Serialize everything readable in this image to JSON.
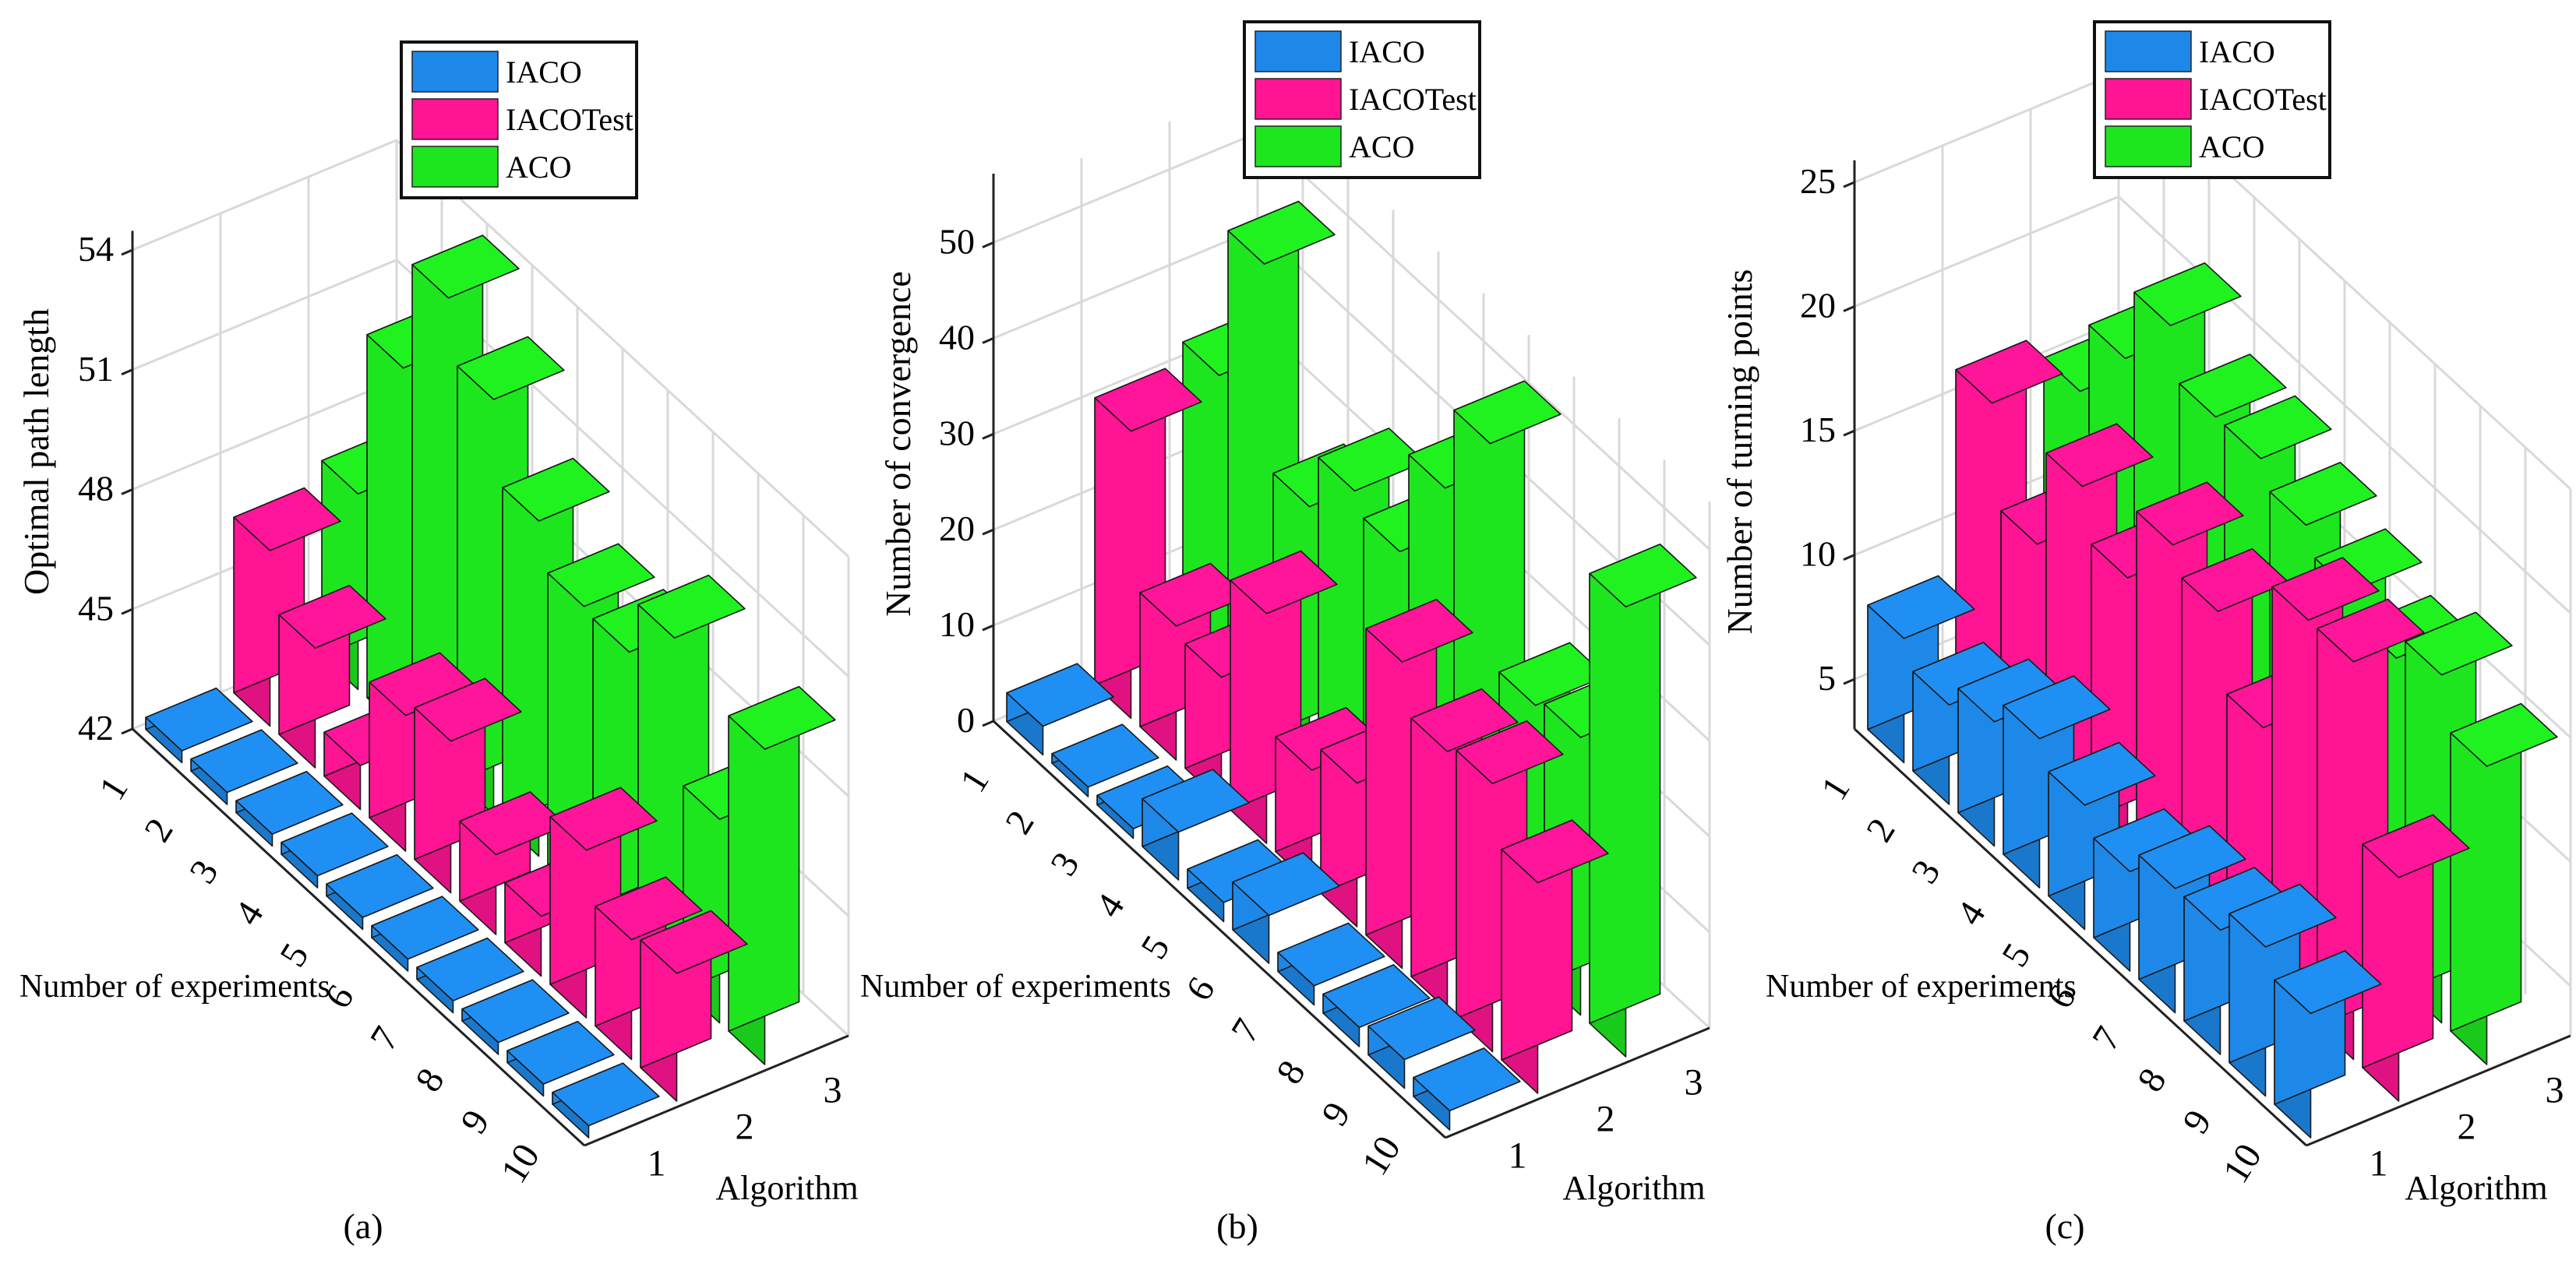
{
  "figure_labels": [
    "(a)",
    "(b)",
    "(c)"
  ],
  "colors": {
    "IACO": "#1e88e8",
    "IACOTest": "#ff1493",
    "ACO": "#1ee61e"
  },
  "legend_entries": [
    "IACO",
    "IACOTest",
    "ACO"
  ],
  "chart_data": [
    {
      "type": "bar3d",
      "label": "(a)",
      "zlabel": "Optimal path length",
      "xlabel": "Number of experiments",
      "ylabel": "Algorithm",
      "x_ticks": [
        "1",
        "2",
        "3",
        "4",
        "5",
        "6",
        "7",
        "8",
        "9",
        "10"
      ],
      "y_ticks": [
        "1",
        "2",
        "3"
      ],
      "z_ticks": [
        "42",
        "45",
        "48",
        "51",
        "54"
      ],
      "zlim": [
        42,
        54
      ],
      "series": [
        {
          "name": "IACO",
          "values": [
            42.3,
            42.3,
            42.3,
            42.3,
            42.3,
            42.3,
            42.3,
            42.3,
            42.3,
            42.3
          ]
        },
        {
          "name": "IACOTest",
          "values": [
            46.4,
            45.0,
            43.1,
            45.4,
            45.8,
            44.0,
            43.5,
            46.2,
            45.0,
            45.2
          ]
        },
        {
          "name": "ACO",
          "values": [
            46.9,
            51.1,
            53.9,
            52.4,
            50.4,
            49.3,
            49.2,
            50.6,
            47.1,
            49.9
          ]
        }
      ]
    },
    {
      "type": "bar3d",
      "label": "(b)",
      "zlabel": "Number of convergence",
      "xlabel": "Number of experiments",
      "ylabel": "Algorithm",
      "x_ticks": [
        "1",
        "2",
        "3",
        "4",
        "5",
        "6",
        "7",
        "8",
        "9",
        "10"
      ],
      "y_ticks": [
        "1",
        "2",
        "3"
      ],
      "z_ticks": [
        "0",
        "10",
        "20",
        "30",
        "40",
        "50"
      ],
      "zlim": [
        0,
        55
      ],
      "series": [
        {
          "name": "IACO",
          "values": [
            3,
            1,
            1,
            5,
            2,
            5,
            2,
            2,
            3,
            2
          ]
        },
        {
          "name": "IACOTest",
          "values": [
            30,
            14,
            13,
            24,
            12,
            15,
            32,
            27,
            28,
            22
          ]
        },
        {
          "name": "ACO",
          "values": [
            32,
            48,
            27,
            33,
            31,
            42,
            51,
            28,
            29,
            47
          ]
        }
      ]
    },
    {
      "type": "bar3d",
      "label": "(c)",
      "zlabel": "Number of turning points",
      "xlabel": "Number of experiments",
      "ylabel": "Algorithm",
      "x_ticks": [
        "1",
        "2",
        "3",
        "4",
        "5",
        "6",
        "7",
        "8",
        "9",
        "10"
      ],
      "y_ticks": [
        "1",
        "2",
        "3"
      ],
      "z_ticks": [
        "5",
        "10",
        "15",
        "20",
        "25"
      ],
      "zlim": [
        3,
        25
      ],
      "series": [
        {
          "name": "IACO",
          "values": [
            8,
            7,
            8,
            9,
            8,
            7,
            8,
            8,
            9,
            8
          ]
        },
        {
          "name": "IACOTest",
          "values": [
            16,
            12,
            16,
            14,
            17,
            16,
            13,
            19,
            19,
            12
          ]
        },
        {
          "name": "ACO",
          "values": [
            15,
            18,
            21,
            19,
            19,
            18,
            17,
            16,
            17,
            15
          ]
        }
      ]
    }
  ]
}
